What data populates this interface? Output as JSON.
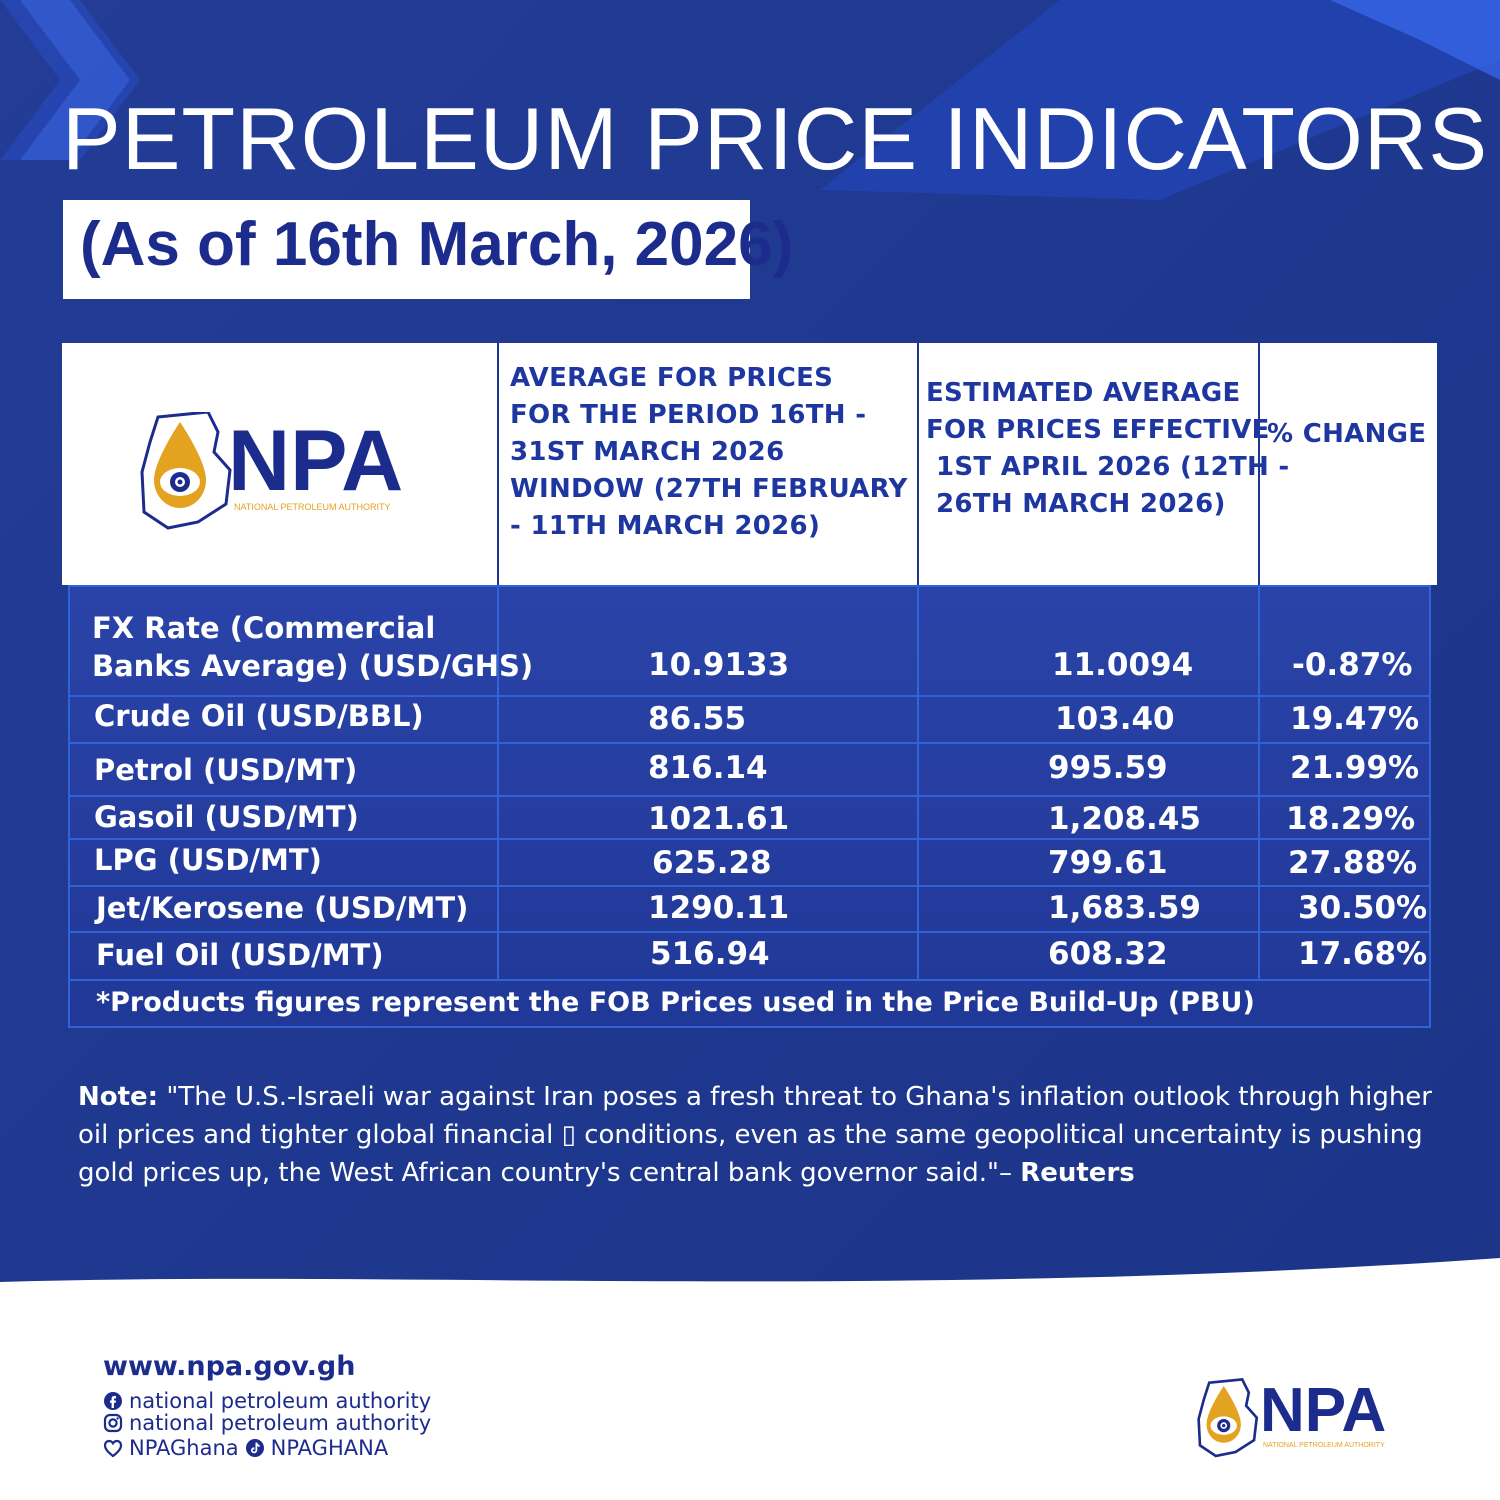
{
  "header": {
    "title": "PETROLEUM PRICE INDICATORS",
    "subtitle": "(As of 16th March, 2026)"
  },
  "logo": {
    "text": "NPA",
    "subtext": "NATIONAL PETROLEUM AUTHORITY"
  },
  "table": {
    "columns": [
      "",
      [
        "AVERAGE FOR PRICES",
        "FOR THE PERIOD 16TH -",
        "31ST MARCH 2026",
        "WINDOW (27TH FEBRUARY",
        "- 11TH MARCH 2026)"
      ],
      [
        "ESTIMATED AVERAGE",
        "FOR PRICES EFFECTIVE",
        "1ST APRIL 2026 (12TH -",
        "26TH MARCH 2026)"
      ],
      "% CHANGE"
    ],
    "rows": [
      {
        "label": [
          "FX Rate (Commercial",
          "Banks Average) (USD/GHS)"
        ],
        "period": "10.9133",
        "estimated": "11.0094",
        "change": "-0.87%"
      },
      {
        "label": [
          "Crude Oil (USD/BBL)"
        ],
        "period": "86.55",
        "estimated": "103.40",
        "change": "19.47%"
      },
      {
        "label": [
          "Petrol (USD/MT)"
        ],
        "period": "816.14",
        "estimated": "995.59",
        "change": "21.99%"
      },
      {
        "label": [
          "Gasoil (USD/MT)"
        ],
        "period": "1021.61",
        "estimated": "1,208.45",
        "change": "18.29%"
      },
      {
        "label": [
          "LPG (USD/MT)"
        ],
        "period": "625.28",
        "estimated": "799.61",
        "change": "27.88%"
      },
      {
        "label": [
          "Jet/Kerosene (USD/MT)"
        ],
        "period": "1290.11",
        "estimated": "1,683.59",
        "change": "30.50%"
      },
      {
        "label": [
          "Fuel Oil (USD/MT)"
        ],
        "period": "516.94",
        "estimated": "608.32",
        "change": "17.68%"
      }
    ],
    "footnote": "*Products figures represent the FOB Prices used in the Price Build-Up (PBU)"
  },
  "note": {
    "lead": "Note:",
    "text": " \"The U.S.-Israeli war against Iran poses a fresh threat to Ghana's inflation outlook through higher oil prices and tighter global financial ▯ conditions, even as the same geopolitical uncertainty is pushing gold prices up, the West African country's central bank governor said.\"– ",
    "source": "Reuters"
  },
  "footer": {
    "website": "www.npa.gov.gh",
    "facebook": "national petroleum authority",
    "instagram": "national petroleum authority",
    "twitter": "NPAGhana",
    "tiktok": "NPAGHANA"
  },
  "colors": {
    "navy": "#1c2c8c",
    "table_blue": "#2a43a8",
    "gold": "#e3a321"
  }
}
